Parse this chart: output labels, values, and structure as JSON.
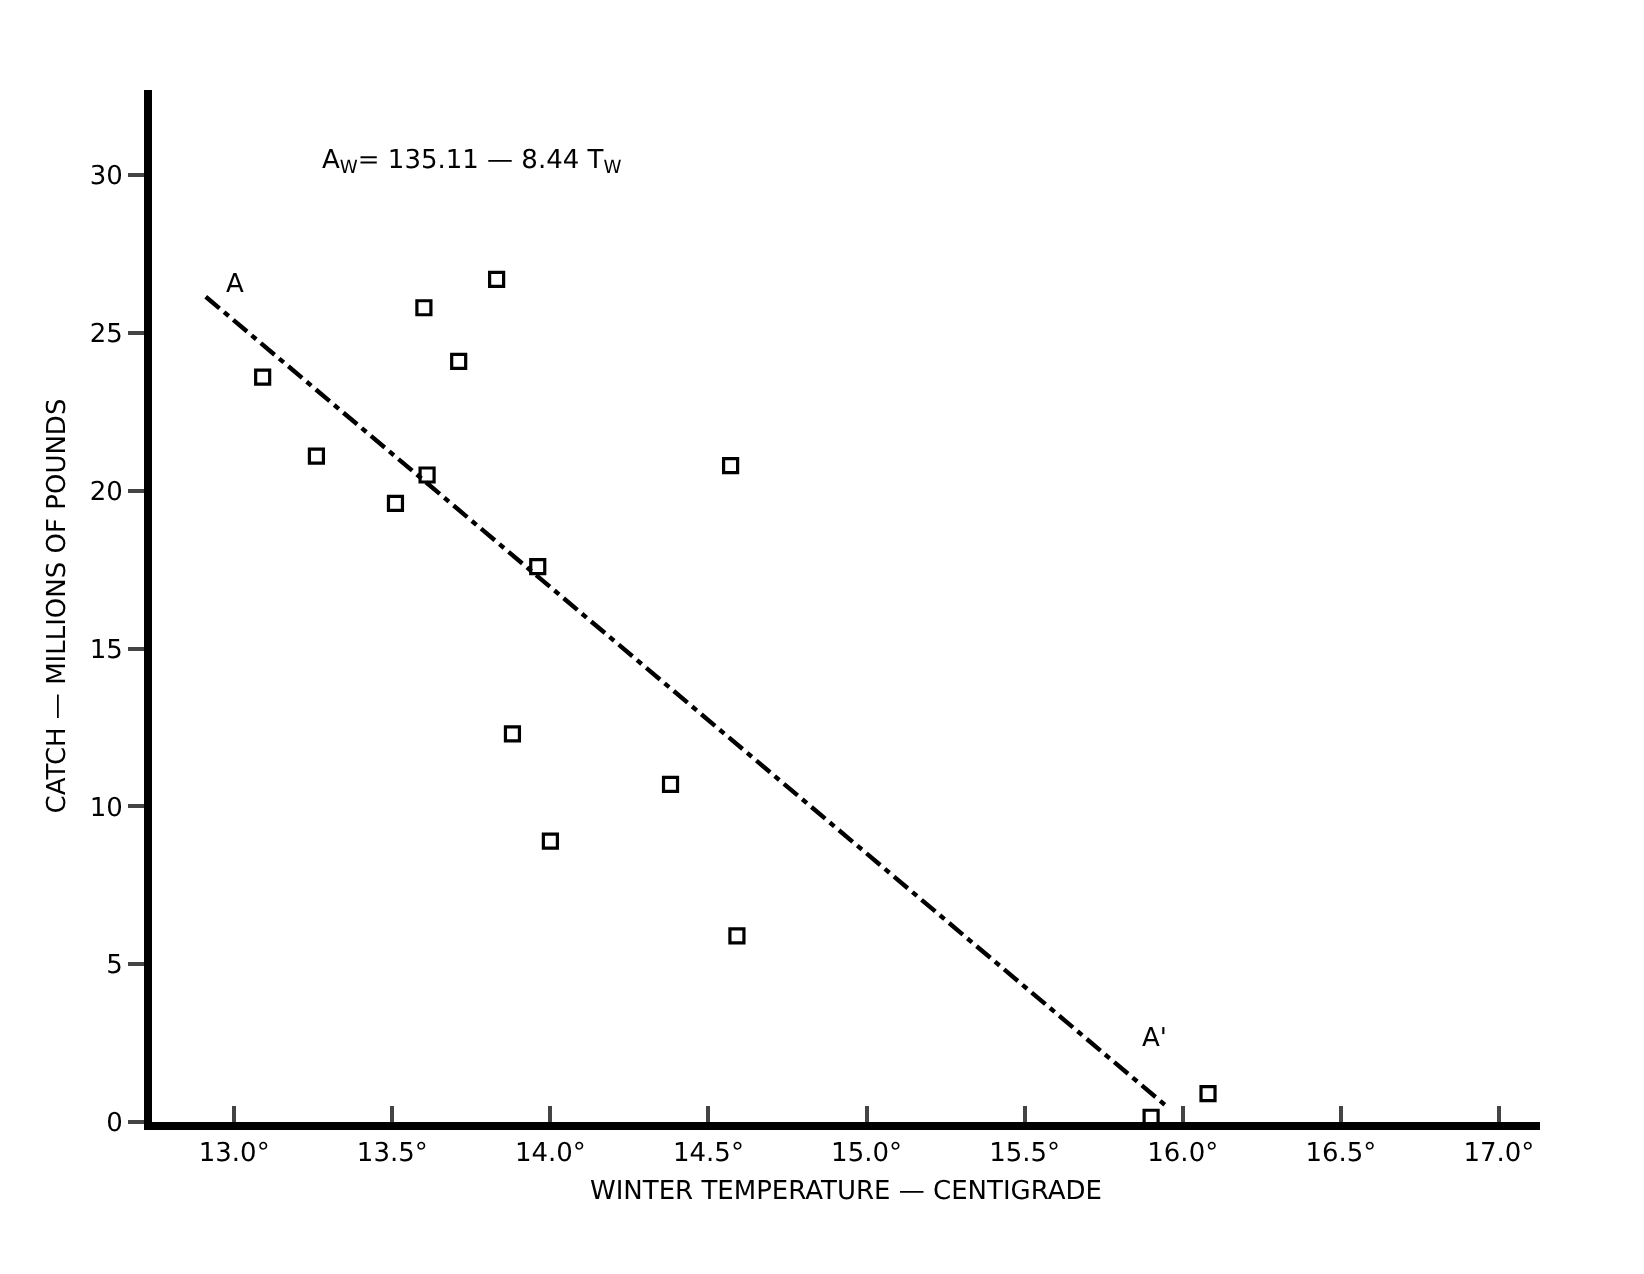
{
  "chart_data": {
    "type": "scatter",
    "xlabel": "WINTER TEMPERATURE — CENTIGRADE",
    "ylabel": "CATCH — MILLIONS OF POUNDS",
    "xlim": [
      12.74,
      17.13
    ],
    "ylim": [
      0,
      32.7
    ],
    "xticks": [
      {
        "value": 13,
        "label": "13.0°"
      },
      {
        "value": 13.5,
        "label": "13.5°"
      },
      {
        "value": 14,
        "label": "14.0°"
      },
      {
        "value": 14.5,
        "label": "14.5°"
      },
      {
        "value": 15,
        "label": "15.0°"
      },
      {
        "value": 15.5,
        "label": "15.5°"
      },
      {
        "value": 16,
        "label": "16.0°"
      },
      {
        "value": 16.5,
        "label": "16.5°"
      },
      {
        "value": 17,
        "label": "17.0°"
      }
    ],
    "yticks": [
      0,
      5,
      10,
      15,
      20,
      25,
      30
    ],
    "grid": false,
    "marker": "square",
    "series": [
      {
        "type": "scatter",
        "color": "#000000",
        "x": [
          13.09,
          13.26,
          13.51,
          13.61,
          13.6,
          13.71,
          13.83,
          13.96,
          14.57,
          13.88,
          14.0,
          14.38,
          14.59,
          15.9,
          16.08
        ],
        "values": [
          23.6,
          21.1,
          19.6,
          20.5,
          25.8,
          24.1,
          26.7,
          17.6,
          20.8,
          12.3,
          8.9,
          10.7,
          5.9,
          0.15,
          0.9
        ]
      },
      {
        "type": "line",
        "color": "#000000",
        "line_style": "dashed",
        "marker": "none",
        "x": [
          12.91,
          15.95
        ],
        "values": [
          26.15,
          0.49
        ]
      }
    ],
    "annotations": [
      "A$_{W}$= 135.11 — 8.44 T$_{W}$",
      "A",
      "A'"
    ]
  }
}
